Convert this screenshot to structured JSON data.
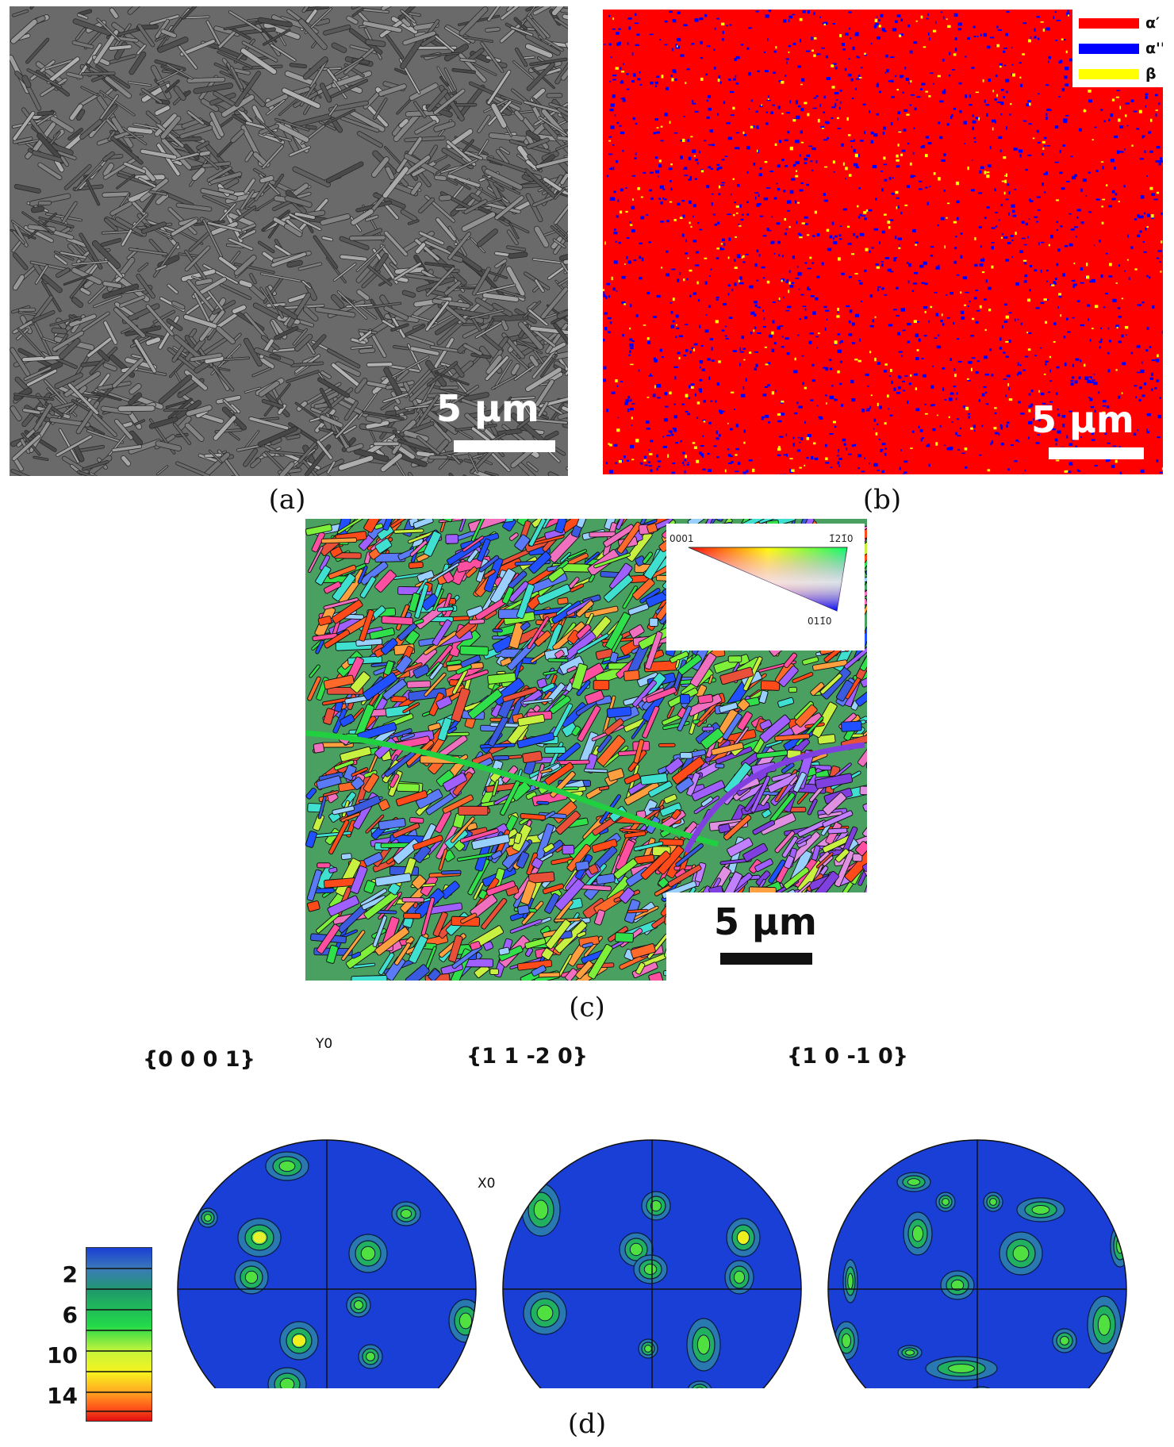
{
  "figure": {
    "panels": [
      {
        "id": "a",
        "caption": "(a)",
        "scale_bar": "5 μm",
        "image": "grayscale SEM micrograph of acicular martensite"
      },
      {
        "id": "b",
        "caption": "(b)",
        "scale_bar": "5 μm",
        "legend": [
          {
            "label": "α′",
            "color": "#ff0000"
          },
          {
            "label": "α''",
            "color": "#0000ff"
          },
          {
            "label": "β",
            "color": "#ffff00"
          }
        ]
      },
      {
        "id": "c",
        "caption": "(c)",
        "scale_bar": "5 μm",
        "ipf_key": {
          "corners": [
            "0001",
            "1̄21̄0",
            "011̄0"
          ]
        }
      },
      {
        "id": "d",
        "caption": "(d)",
        "pole_figures": [
          {
            "title": "{0 0 0 1}"
          },
          {
            "title": "{1 1 -2 0}"
          },
          {
            "title": "{1 0 -1 0}"
          }
        ],
        "axis_labels": {
          "y": "Y0",
          "x": "X0"
        },
        "colorbar": {
          "ticks": [
            "2",
            "6",
            "10",
            "14"
          ]
        }
      }
    ],
    "colors": {
      "phase_alpha_prime": "#ff0000",
      "phase_alpha_double_prime": "#0000ff",
      "phase_beta": "#ffff00",
      "pf_background": "#1a3fd6"
    }
  }
}
